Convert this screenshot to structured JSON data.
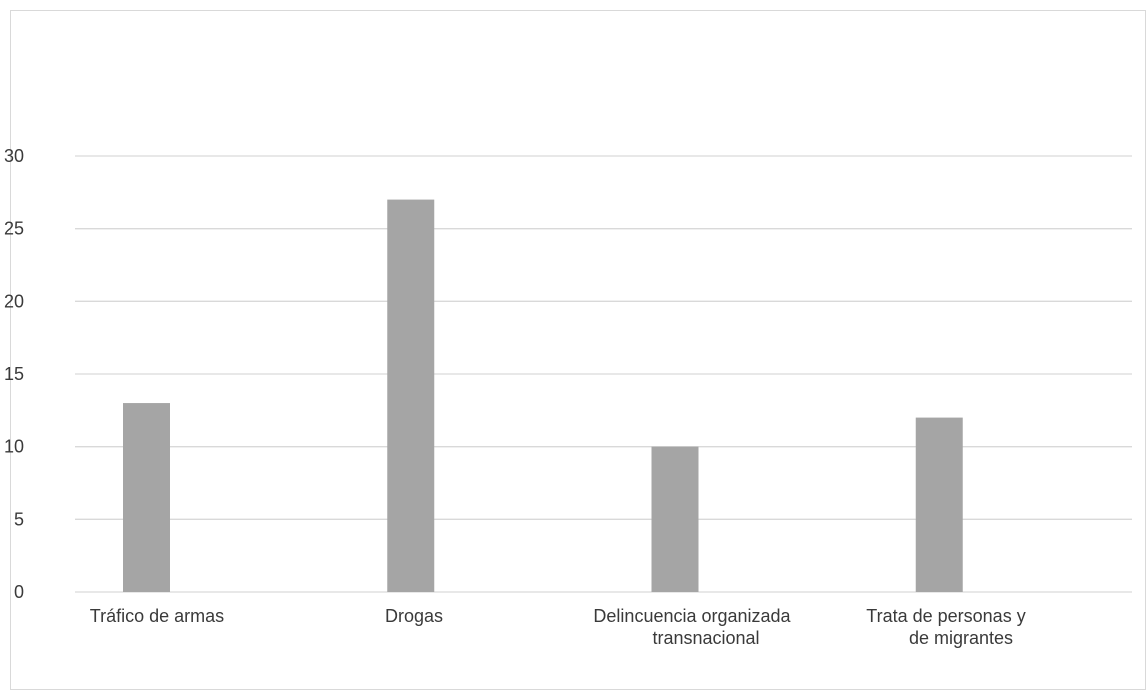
{
  "chart_data": {
    "type": "bar",
    "categories": [
      [
        "Tráfico de armas"
      ],
      [
        "Drogas"
      ],
      [
        "Delincuencia organizada",
        "transnacional"
      ],
      [
        "Trata de personas y",
        "de migrantes"
      ]
    ],
    "values": [
      13,
      27,
      10,
      12
    ],
    "title": "",
    "xlabel": "",
    "ylabel": "",
    "ylim": [
      0,
      30
    ],
    "yticks": [
      0,
      5,
      10,
      15,
      20,
      25,
      30
    ],
    "grid": true,
    "bar_color": "#a5a5a5",
    "gridline_color": "#d9d9d9",
    "axis_color": "#d9d9d9",
    "label_color": "#3a3a3a"
  }
}
